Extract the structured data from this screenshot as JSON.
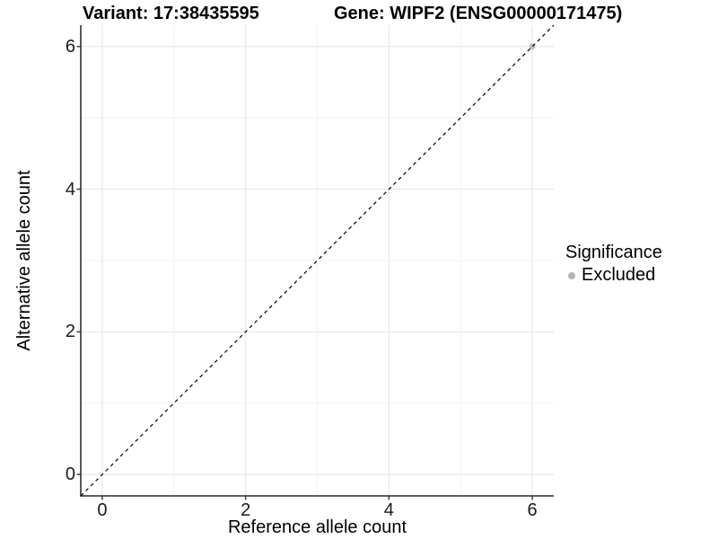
{
  "titles": {
    "variant": "Variant: 17:38435595",
    "gene": "Gene: WIPF2 (ENSG00000171475)"
  },
  "chart_data": {
    "type": "scatter",
    "xlabel": "Reference allele count",
    "ylabel": "Alternative allele count",
    "xlim": [
      -0.3,
      6.3
    ],
    "ylim": [
      -0.3,
      6.3
    ],
    "xticks": [
      0,
      2,
      4,
      6
    ],
    "yticks": [
      0,
      2,
      4,
      6
    ],
    "minor_grid_x": [
      1,
      3,
      5
    ],
    "minor_grid_y": [
      1,
      3,
      5
    ],
    "grid": "major-and-minor",
    "points": [
      {
        "x": 6,
        "y": 6,
        "series": "Excluded"
      }
    ],
    "reference_line": {
      "slope": 1,
      "intercept": 0,
      "style": "dashed",
      "color": "#000000"
    },
    "legend": {
      "title": "Significance",
      "position": "right",
      "items": [
        {
          "label": "Excluded",
          "color": "#b3b3b3"
        }
      ]
    },
    "colors": {
      "point_excluded": "#b3b3b3",
      "grid_major": "#e6e6e6",
      "grid_minor": "#f2f2f2",
      "axis_line": "#474747",
      "tick_mark": "#333333"
    }
  }
}
